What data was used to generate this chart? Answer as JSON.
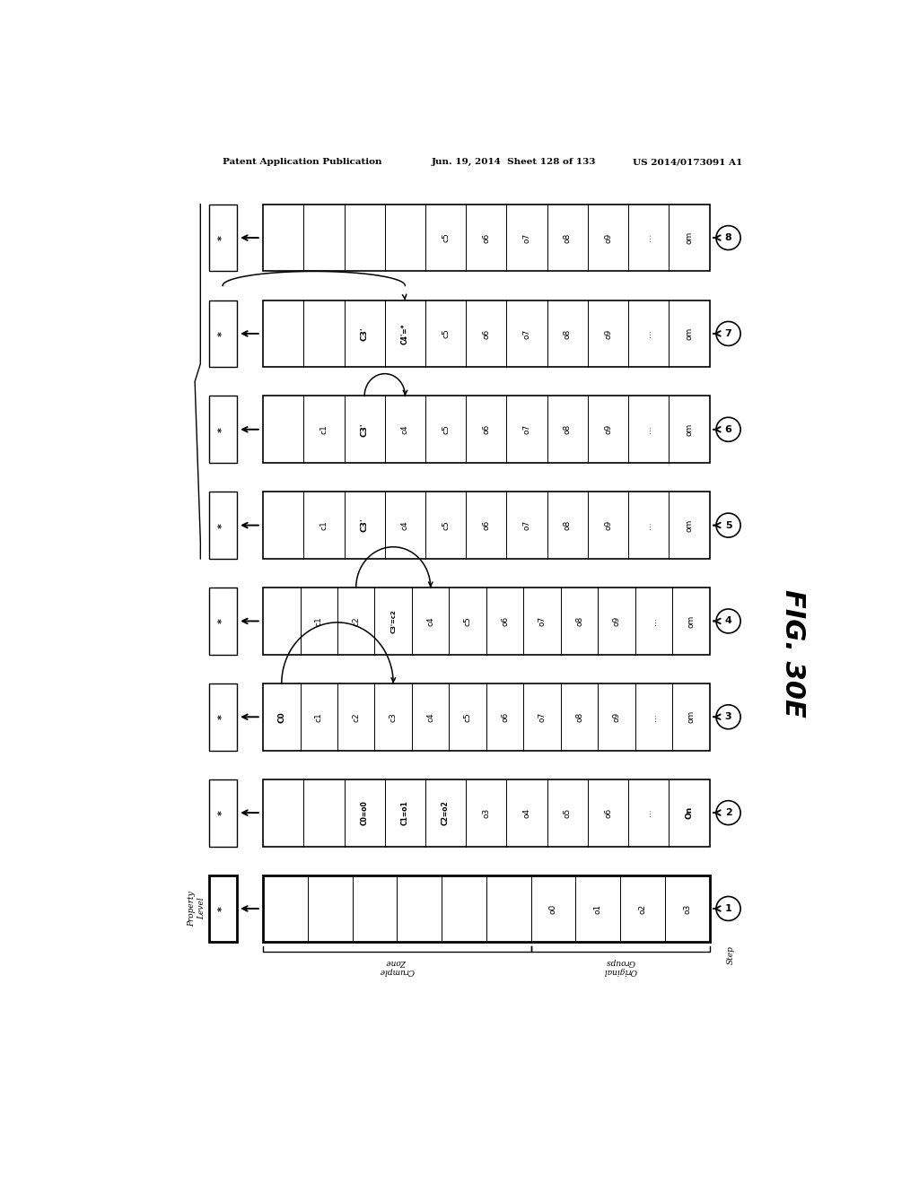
{
  "header_left": "Patent Application Publication",
  "header_mid": "Jun. 19, 2014  Sheet 128 of 133",
  "header_right": "US 2014/0173091 A1",
  "fig_label": "FIG. 30E",
  "background_color": "#ffffff",
  "rows": [
    {
      "step": 8,
      "cells": [
        "",
        "",
        "",
        "",
        "c5",
        "o6",
        "o7",
        "o8",
        "o9",
        "...",
        "om"
      ],
      "arc": null
    },
    {
      "step": 7,
      "cells": [
        "",
        "",
        "C3'",
        "C4'=*",
        "c5",
        "o6",
        "o7",
        "o8",
        "o9",
        "...",
        "om"
      ],
      "arc": {
        "from_col": 0,
        "to_col": 3,
        "cross_row": true
      }
    },
    {
      "step": 6,
      "cells": [
        "",
        "c1",
        "C3'",
        "c4",
        "c5",
        "o6",
        "o7",
        "o8",
        "o9",
        "...",
        "om"
      ],
      "arc": {
        "from_col": 2,
        "to_col": 3,
        "cross_row": false
      }
    },
    {
      "step": 5,
      "cells": [
        "",
        "c1",
        "C3'",
        "c4",
        "c5",
        "o6",
        "o7",
        "o8",
        "o9",
        "...",
        "om"
      ],
      "arc": null
    },
    {
      "step": 4,
      "cells": [
        "",
        "c1",
        "c2",
        "C3'=c2",
        "c4",
        "c5",
        "o6",
        "o7",
        "o8",
        "o9",
        "...",
        "om"
      ],
      "arc": {
        "from_col": 2,
        "to_col": 4,
        "cross_row": false
      }
    },
    {
      "step": 3,
      "cells": [
        "C0",
        "c1",
        "c2",
        "c3",
        "c4",
        "c5",
        "o6",
        "o7",
        "o8",
        "o9",
        "...",
        "om"
      ],
      "arc": {
        "from_col": 0,
        "to_col": 3,
        "cross_row": false
      }
    },
    {
      "step": 2,
      "cells": [
        "",
        "",
        "C0=o0",
        "C1=o1",
        "C2=o2",
        "o3",
        "o4",
        "o5",
        "o6",
        "...",
        "On"
      ],
      "arc": null
    },
    {
      "step": 1,
      "cells": [
        "",
        "",
        "",
        "",
        "",
        "",
        "o0",
        "o1",
        "o2",
        "o3"
      ],
      "arc": null,
      "thick": true
    }
  ],
  "crumple_zone_cols": [
    0,
    5
  ],
  "original_groups_cols": [
    6,
    9
  ]
}
